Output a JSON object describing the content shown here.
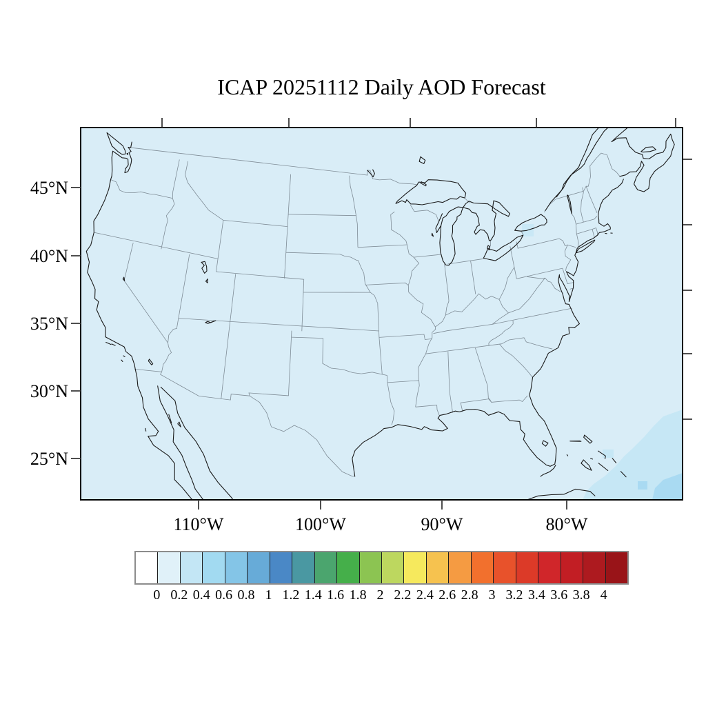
{
  "title": "ICAP 20251112 Daily AOD Forecast",
  "map": {
    "lat_tick_labels": [
      "45°N",
      "40°N",
      "35°N",
      "30°N",
      "25°N"
    ],
    "lon_tick_labels": [
      "110°W",
      "100°W",
      "90°W",
      "80°W"
    ],
    "background_color": "#d9edf7",
    "coastline_color": "#1a1a1a",
    "border_color": "#7f8c96",
    "aod_overlay": {
      "southeast_plume_colors": [
        "#c6e7f5",
        "#a9daf2"
      ],
      "lake_erie_spot_color": "#c9e8f6"
    }
  },
  "colorbar": {
    "tick_labels": [
      "0",
      "0.2",
      "0.4",
      "0.6",
      "0.8",
      "1",
      "1.2",
      "1.4",
      "1.6",
      "1.8",
      "2",
      "2.2",
      "2.4",
      "2.6",
      "2.8",
      "3",
      "3.2",
      "3.4",
      "3.6",
      "3.8",
      "4"
    ],
    "cell_colors": [
      "#ffffff",
      "#e0f1f9",
      "#c3e6f5",
      "#a2daf1",
      "#84c5e7",
      "#67abd8",
      "#4a88c6",
      "#4a98a2",
      "#4ba56e",
      "#45af4a",
      "#8cc452",
      "#bdd75f",
      "#f6e95d",
      "#f6c24f",
      "#f59b42",
      "#f2702d",
      "#e8522b",
      "#dc3a28",
      "#d0262a",
      "#c21e24",
      "#ad1a1f",
      "#991418"
    ]
  }
}
